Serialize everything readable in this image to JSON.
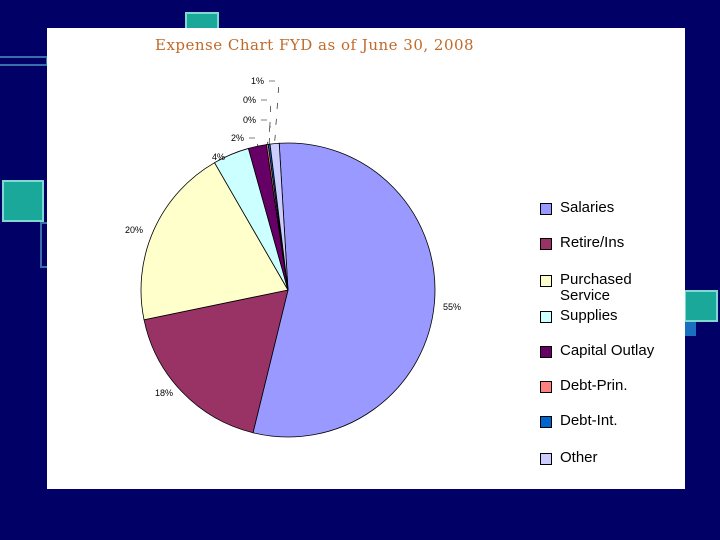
{
  "chart_data": {
    "type": "pie",
    "title": "Expense Chart FYD as of June 30, 2008",
    "slices": [
      {
        "name": "Salaries",
        "value": 55,
        "label": "55%",
        "color": "#9999ff"
      },
      {
        "name": "Retire/Ins",
        "value": 18,
        "label": "18%",
        "color": "#993366"
      },
      {
        "name": "Purchased\nService",
        "value": 20,
        "label": "20%",
        "color": "#ffffcc"
      },
      {
        "name": "Supplies",
        "value": 4,
        "label": "4%",
        "color": "#ccffff"
      },
      {
        "name": "Capital Outlay",
        "value": 2,
        "label": "2%",
        "color": "#660066"
      },
      {
        "name": "Debt-Prin.",
        "value": 0.2,
        "label": "0%",
        "color": "#ff8080"
      },
      {
        "name": "Debt-Int.",
        "value": 0.2,
        "label": "0%",
        "color": "#0066cc"
      },
      {
        "name": "Other",
        "value": 1,
        "label": "1%",
        "color": "#ccccff"
      }
    ],
    "legend_position": "right"
  }
}
